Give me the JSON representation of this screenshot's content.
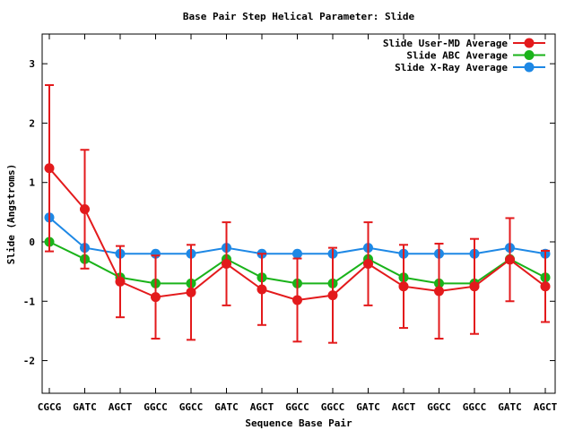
{
  "chart_data": {
    "type": "line",
    "title": "Base Pair Step Helical Parameter: Slide",
    "xlabel": "Sequence Base Pair",
    "ylabel": "Slide (Angstroms)",
    "categories": [
      "CGCG",
      "GATC",
      "AGCT",
      "GGCC",
      "GGCC",
      "GATC",
      "AGCT",
      "GGCC",
      "GGCC",
      "GATC",
      "AGCT",
      "GGCC",
      "GGCC",
      "GATC",
      "AGCT"
    ],
    "ylim": [
      -2.55,
      3.5
    ],
    "yticks": [
      -2,
      -1,
      0,
      1,
      2,
      3
    ],
    "ytick_labels": [
      "-2",
      "-1",
      "0",
      "1",
      "2",
      "3"
    ],
    "legend_position": "top-right",
    "series": [
      {
        "name": "Slide User-MD Average",
        "color": "#e31a1c",
        "values": [
          1.24,
          0.55,
          -0.67,
          -0.93,
          -0.85,
          -0.37,
          -0.8,
          -0.98,
          -0.9,
          -0.37,
          -0.75,
          -0.83,
          -0.75,
          -0.3,
          -0.75
        ],
        "error": [
          1.4,
          1.0,
          0.6,
          0.7,
          0.8,
          0.7,
          0.6,
          0.7,
          0.8,
          0.7,
          0.7,
          0.8,
          0.8,
          0.7,
          0.6
        ]
      },
      {
        "name": "Slide ABC Average",
        "color": "#1ab31a",
        "values": [
          0.0,
          -0.29,
          -0.6,
          -0.7,
          -0.7,
          -0.29,
          -0.6,
          -0.7,
          -0.7,
          -0.29,
          -0.6,
          -0.7,
          -0.7,
          -0.29,
          -0.6
        ]
      },
      {
        "name": "Slide X-Ray Average",
        "color": "#1e88e5",
        "values": [
          0.41,
          -0.1,
          -0.2,
          -0.2,
          -0.2,
          -0.1,
          -0.2,
          -0.2,
          -0.2,
          -0.1,
          -0.2,
          -0.2,
          -0.2,
          -0.1,
          -0.2
        ]
      }
    ]
  }
}
